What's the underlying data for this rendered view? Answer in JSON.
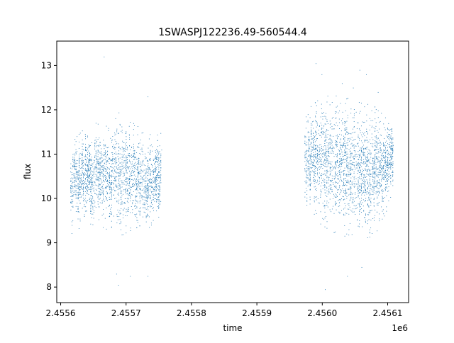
{
  "chart_data": {
    "type": "scatter",
    "title": "1SWASPJ122236.49-560544.4",
    "xlabel": "time",
    "ylabel": "flux",
    "x_offset_label": "1e6",
    "xlim": [
      2455594,
      2456132
    ],
    "ylim": [
      7.65,
      13.55
    ],
    "x_ticks": [
      2455600,
      2455700,
      2455800,
      2455900,
      2456000,
      2456100
    ],
    "x_tick_labels": [
      "2.4556",
      "2.4557",
      "2.4558",
      "2.4559",
      "2.4560",
      "2.4561"
    ],
    "y_ticks": [
      8,
      9,
      10,
      11,
      12,
      13
    ],
    "y_tick_labels": [
      "8",
      "9",
      "10",
      "11",
      "12",
      "13"
    ],
    "grid": false,
    "marker_color": "#1f77b4",
    "series": [
      {
        "points_x": [
          2455615,
          2455617,
          2455620,
          2455622,
          2455626,
          2455629,
          2455633,
          2455637,
          2455641,
          2455645,
          2455648,
          2455652,
          2455655,
          2455659,
          2455662,
          2455666,
          2455670,
          2455674,
          2455678,
          2455682,
          2455686,
          2455690,
          2455694,
          2455698,
          2455702,
          2455706,
          2455710,
          2455714,
          2455718,
          2455722,
          2455726,
          2455730,
          2455734,
          2455738,
          2455742,
          2455746,
          2455750,
          2455754,
          2455973,
          2455977,
          2455981,
          2455985,
          2455989,
          2455993,
          2455997,
          2456001,
          2456005,
          2456009,
          2456013,
          2456017,
          2456021,
          2456025,
          2456029,
          2456033,
          2456037,
          2456041,
          2456045,
          2456049,
          2456053,
          2456057,
          2456061,
          2456065,
          2456069,
          2456073,
          2456077,
          2456081,
          2456085,
          2456089,
          2456093,
          2456097,
          2456101,
          2456105,
          2456108
        ],
        "points_y": [
          10.3,
          9.4,
          10.9,
          10.1,
          10.6,
          10.2,
          10.8,
          10.4,
          10.5,
          11.2,
          9.9,
          10.7,
          10.3,
          10.6,
          10.1,
          11.0,
          10.4,
          10.8,
          10.2,
          10.9,
          9.6,
          10.5,
          11.3,
          10.0,
          10.7,
          10.4,
          10.6,
          10.2,
          10.9,
          9.8,
          10.5,
          10.3,
          10.7,
          9.9,
          10.6,
          10.2,
          10.8,
          11.1,
          11.3,
          10.9,
          10.2,
          11.1,
          10.5,
          10.0,
          11.5,
          10.3,
          9.6,
          10.8,
          10.4,
          10.1,
          11.2,
          9.7,
          10.6,
          10.3,
          10.9,
          11.3,
          10.1,
          10.5,
          9.8,
          10.7,
          11.4,
          10.2,
          9.5,
          10.8,
          10.4,
          11.1,
          9.9,
          10.6,
          10.0,
          11.2,
          10.7,
          10.9,
          11.2
        ]
      }
    ],
    "band_points": [
      {
        "x": 2455615,
        "y_low": 9.35,
        "y_high": 11.1
      },
      {
        "x": 2455640,
        "y_low": 9.6,
        "y_high": 11.5
      },
      {
        "x": 2455665,
        "y_low": 9.5,
        "y_high": 11.6
      },
      {
        "x": 2455690,
        "y_low": 9.3,
        "y_high": 11.8
      },
      {
        "x": 2455715,
        "y_low": 9.5,
        "y_high": 11.5
      },
      {
        "x": 2455740,
        "y_low": 9.4,
        "y_high": 11.3
      },
      {
        "x": 2455754,
        "y_low": 9.9,
        "y_high": 11.6
      },
      {
        "x": 2455973,
        "y_low": 9.9,
        "y_high": 11.8
      },
      {
        "x": 2455995,
        "y_low": 9.6,
        "y_high": 12.1
      },
      {
        "x": 2456015,
        "y_low": 9.4,
        "y_high": 12.2
      },
      {
        "x": 2456035,
        "y_low": 9.3,
        "y_high": 12.1
      },
      {
        "x": 2456055,
        "y_low": 9.2,
        "y_high": 12.2
      },
      {
        "x": 2456075,
        "y_low": 9.3,
        "y_high": 12.0
      },
      {
        "x": 2456095,
        "y_low": 9.6,
        "y_high": 11.7
      },
      {
        "x": 2456108,
        "y_low": 10.3,
        "y_high": 11.8
      }
    ],
    "outliers": [
      {
        "x": 2455666,
        "y": 13.2
      },
      {
        "x": 2455685,
        "y": 8.3
      },
      {
        "x": 2455688,
        "y": 8.05
      },
      {
        "x": 2455706,
        "y": 8.25
      },
      {
        "x": 2455733,
        "y": 12.3
      },
      {
        "x": 2455733,
        "y": 8.25
      },
      {
        "x": 2455990,
        "y": 13.05
      },
      {
        "x": 2455999,
        "y": 12.8
      },
      {
        "x": 2456004,
        "y": 7.95
      },
      {
        "x": 2456030,
        "y": 12.6
      },
      {
        "x": 2456047,
        "y": 12.5
      },
      {
        "x": 2456057,
        "y": 12.9
      },
      {
        "x": 2456067,
        "y": 12.8
      },
      {
        "x": 2456085,
        "y": 12.4
      },
      {
        "x": 2456060,
        "y": 8.45
      },
      {
        "x": 2456038,
        "y": 8.25
      }
    ]
  }
}
